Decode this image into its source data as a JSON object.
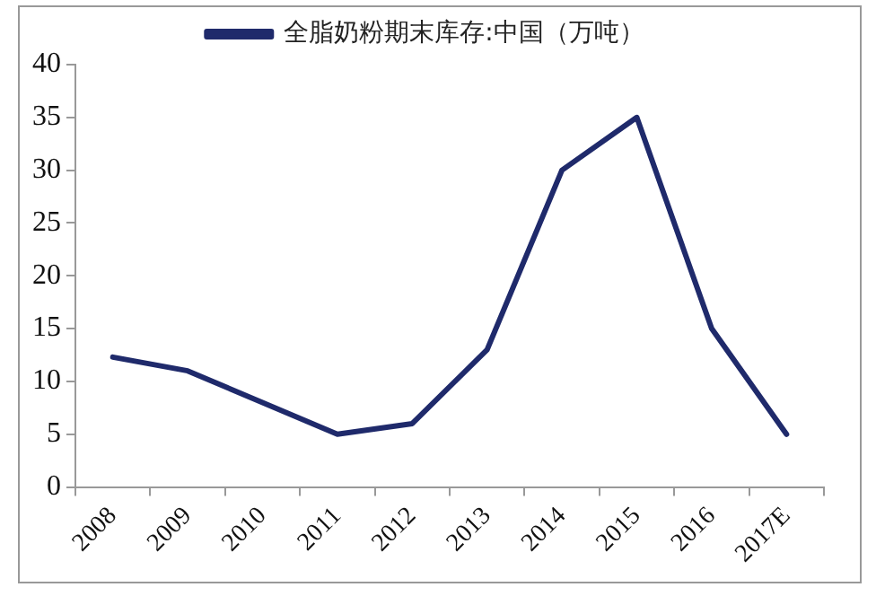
{
  "chart_data": {
    "type": "line",
    "categories": [
      "2008",
      "2009",
      "2010",
      "2011",
      "2012",
      "2013",
      "2014",
      "2015",
      "2016",
      "2017E"
    ],
    "series": [
      {
        "name": "全脂奶粉期末库存:中国（万吨）",
        "color": "#1f2a6b",
        "values": [
          12.3,
          11,
          8,
          5,
          6,
          13,
          30,
          35,
          15,
          5
        ]
      }
    ],
    "ylim": [
      0,
      40
    ],
    "yticks": [
      0,
      5,
      10,
      15,
      20,
      25,
      30,
      35,
      40
    ],
    "grid": false,
    "legend": "top",
    "marker": "none",
    "line_style": "solid"
  }
}
